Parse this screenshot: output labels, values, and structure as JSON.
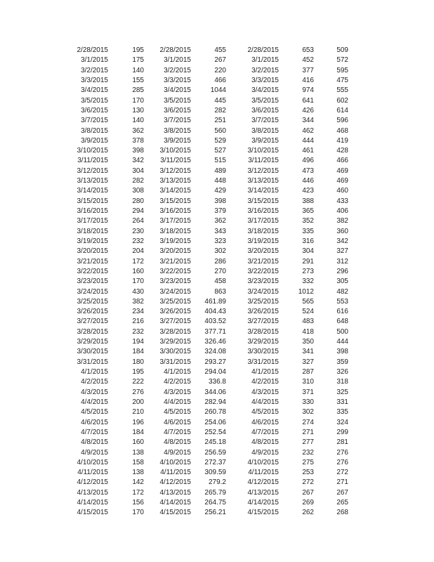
{
  "table": {
    "rows": [
      [
        "2/28/2015",
        "195",
        "2/28/2015",
        "455",
        "2/28/2015",
        "653",
        "509"
      ],
      [
        "3/1/2015",
        "175",
        "3/1/2015",
        "267",
        "3/1/2015",
        "452",
        "572"
      ],
      [
        "3/2/2015",
        "140",
        "3/2/2015",
        "220",
        "3/2/2015",
        "377",
        "595"
      ],
      [
        "3/3/2015",
        "155",
        "3/3/2015",
        "466",
        "3/3/2015",
        "416",
        "475"
      ],
      [
        "3/4/2015",
        "285",
        "3/4/2015",
        "1044",
        "3/4/2015",
        "974",
        "555"
      ],
      [
        "3/5/2015",
        "170",
        "3/5/2015",
        "445",
        "3/5/2015",
        "641",
        "602"
      ],
      [
        "3/6/2015",
        "130",
        "3/6/2015",
        "282",
        "3/6/2015",
        "426",
        "614"
      ],
      [
        "3/7/2015",
        "140",
        "3/7/2015",
        "251",
        "3/7/2015",
        "344",
        "596"
      ],
      [
        "3/8/2015",
        "362",
        "3/8/2015",
        "560",
        "3/8/2015",
        "462",
        "468"
      ],
      [
        "3/9/2015",
        "378",
        "3/9/2015",
        "529",
        "3/9/2015",
        "444",
        "419"
      ],
      [
        "3/10/2015",
        "398",
        "3/10/2015",
        "527",
        "3/10/2015",
        "461",
        "428"
      ],
      [
        "3/11/2015",
        "342",
        "3/11/2015",
        "515",
        "3/11/2015",
        "496",
        "466"
      ],
      [
        "3/12/2015",
        "304",
        "3/12/2015",
        "489",
        "3/12/2015",
        "473",
        "469"
      ],
      [
        "3/13/2015",
        "282",
        "3/13/2015",
        "448",
        "3/13/2015",
        "446",
        "469"
      ],
      [
        "3/14/2015",
        "308",
        "3/14/2015",
        "429",
        "3/14/2015",
        "423",
        "460"
      ],
      [
        "3/15/2015",
        "280",
        "3/15/2015",
        "398",
        "3/15/2015",
        "388",
        "433"
      ],
      [
        "3/16/2015",
        "294",
        "3/16/2015",
        "379",
        "3/16/2015",
        "365",
        "406"
      ],
      [
        "3/17/2015",
        "264",
        "3/17/2015",
        "362",
        "3/17/2015",
        "352",
        "382"
      ],
      [
        "3/18/2015",
        "230",
        "3/18/2015",
        "343",
        "3/18/2015",
        "335",
        "360"
      ],
      [
        "3/19/2015",
        "232",
        "3/19/2015",
        "323",
        "3/19/2015",
        "316",
        "342"
      ],
      [
        "3/20/2015",
        "204",
        "3/20/2015",
        "302",
        "3/20/2015",
        "304",
        "327"
      ],
      [
        "3/21/2015",
        "172",
        "3/21/2015",
        "286",
        "3/21/2015",
        "291",
        "312"
      ],
      [
        "3/22/2015",
        "160",
        "3/22/2015",
        "270",
        "3/22/2015",
        "273",
        "296"
      ],
      [
        "3/23/2015",
        "170",
        "3/23/2015",
        "458",
        "3/23/2015",
        "332",
        "305"
      ],
      [
        "3/24/2015",
        "430",
        "3/24/2015",
        "863",
        "3/24/2015",
        "1012",
        "482"
      ],
      [
        "3/25/2015",
        "382",
        "3/25/2015",
        "461.89",
        "3/25/2015",
        "565",
        "553"
      ],
      [
        "3/26/2015",
        "234",
        "3/26/2015",
        "404.43",
        "3/26/2015",
        "524",
        "616"
      ],
      [
        "3/27/2015",
        "216",
        "3/27/2015",
        "403.52",
        "3/27/2015",
        "483",
        "648"
      ],
      [
        "3/28/2015",
        "232",
        "3/28/2015",
        "377.71",
        "3/28/2015",
        "418",
        "500"
      ],
      [
        "3/29/2015",
        "194",
        "3/29/2015",
        "326.46",
        "3/29/2015",
        "350",
        "444"
      ],
      [
        "3/30/2015",
        "184",
        "3/30/2015",
        "324.08",
        "3/30/2015",
        "341",
        "398"
      ],
      [
        "3/31/2015",
        "180",
        "3/31/2015",
        "293.27",
        "3/31/2015",
        "327",
        "359"
      ],
      [
        "4/1/2015",
        "195",
        "4/1/2015",
        "294.04",
        "4/1/2015",
        "287",
        "326"
      ],
      [
        "4/2/2015",
        "222",
        "4/2/2015",
        "336.8",
        "4/2/2015",
        "310",
        "318"
      ],
      [
        "4/3/2015",
        "276",
        "4/3/2015",
        "344.06",
        "4/3/2015",
        "371",
        "325"
      ],
      [
        "4/4/2015",
        "200",
        "4/4/2015",
        "282.94",
        "4/4/2015",
        "330",
        "331"
      ],
      [
        "4/5/2015",
        "210",
        "4/5/2015",
        "260.78",
        "4/5/2015",
        "302",
        "335"
      ],
      [
        "4/6/2015",
        "196",
        "4/6/2015",
        "254.06",
        "4/6/2015",
        "274",
        "324"
      ],
      [
        "4/7/2015",
        "184",
        "4/7/2015",
        "252.54",
        "4/7/2015",
        "271",
        "299"
      ],
      [
        "4/8/2015",
        "160",
        "4/8/2015",
        "245.18",
        "4/8/2015",
        "277",
        "281"
      ],
      [
        "4/9/2015",
        "138",
        "4/9/2015",
        "256.59",
        "4/9/2015",
        "232",
        "276"
      ],
      [
        "4/10/2015",
        "158",
        "4/10/2015",
        "272.37",
        "4/10/2015",
        "275",
        "276"
      ],
      [
        "4/11/2015",
        "138",
        "4/11/2015",
        "309.59",
        "4/11/2015",
        "253",
        "272"
      ],
      [
        "4/12/2015",
        "142",
        "4/12/2015",
        "279.2",
        "4/12/2015",
        "272",
        "271"
      ],
      [
        "4/13/2015",
        "172",
        "4/13/2015",
        "265.79",
        "4/13/2015",
        "267",
        "267"
      ],
      [
        "4/14/2015",
        "156",
        "4/14/2015",
        "264.75",
        "4/14/2015",
        "269",
        "265"
      ],
      [
        "4/15/2015",
        "170",
        "4/15/2015",
        "256.21",
        "4/15/2015",
        "262",
        "268"
      ]
    ]
  }
}
